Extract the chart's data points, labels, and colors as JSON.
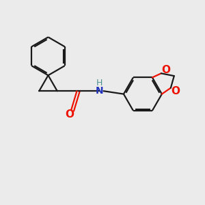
{
  "bg_color": "#ebebeb",
  "bond_color": "#1a1a1a",
  "o_color": "#ee1100",
  "n_color": "#2233bb",
  "h_color": "#4a9090",
  "line_width": 1.6,
  "fig_size": [
    3.0,
    3.0
  ],
  "dpi": 100,
  "xlim": [
    0,
    10
  ],
  "ylim": [
    0,
    10
  ]
}
